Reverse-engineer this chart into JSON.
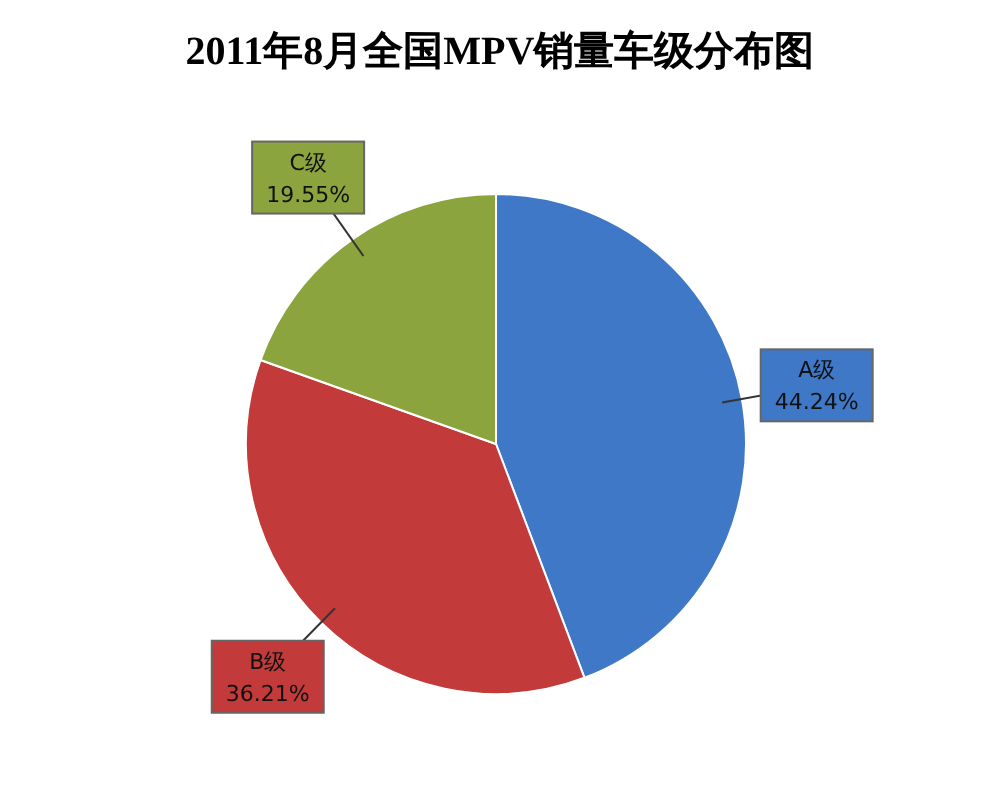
{
  "chart_data": {
    "type": "pie",
    "title": "2011年8月全国MPV销量车级分布图",
    "categories": [
      "A级",
      "B级",
      "C级"
    ],
    "values": [
      44.24,
      36.21,
      19.55
    ],
    "colors": [
      "#3f78c6",
      "#c23b3a",
      "#8ba43e"
    ],
    "value_labels": [
      "44.24%",
      "36.21%",
      "19.55%"
    ]
  }
}
